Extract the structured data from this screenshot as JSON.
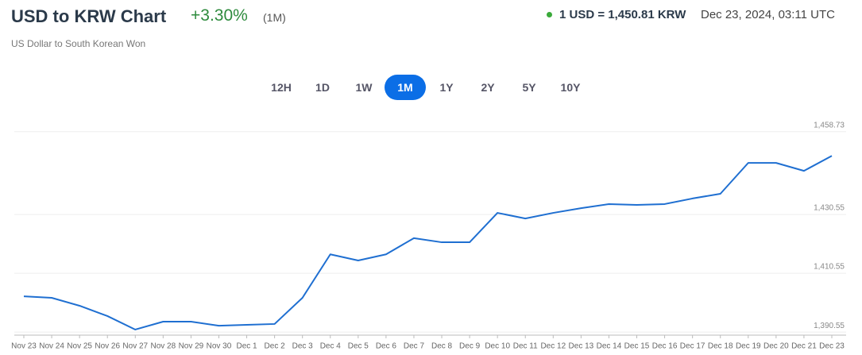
{
  "header": {
    "title": "USD to KRW Chart",
    "change": "+3.30%",
    "period": "(1M)",
    "subtitle": "US Dollar to South Korean Won",
    "rate": "1 USD = 1,450.81 KRW",
    "timestamp": "Dec 23, 2024, 03:11 UTC"
  },
  "ranges": {
    "options": [
      "12H",
      "1D",
      "1W",
      "1M",
      "1Y",
      "2Y",
      "5Y",
      "10Y"
    ],
    "active": "1M"
  },
  "chart_data": {
    "type": "line",
    "categories": [
      "Nov 23",
      "Nov 24",
      "Nov 25",
      "Nov 26",
      "Nov 27",
      "Nov 28",
      "Nov 29",
      "Nov 30",
      "Dec 1",
      "Dec 2",
      "Dec 3",
      "Dec 4",
      "Dec 5",
      "Dec 6",
      "Dec 7",
      "Dec 8",
      "Dec 9",
      "Dec 10",
      "Dec 11",
      "Dec 12",
      "Dec 13",
      "Dec 14",
      "Dec 15",
      "Dec 16",
      "Dec 17",
      "Dec 18",
      "Dec 19",
      "Dec 20",
      "Dec 21",
      "Dec 23"
    ],
    "values": [
      1402.7,
      1402.2,
      1399.5,
      1396,
      1391.4,
      1394.1,
      1394.1,
      1392.7,
      1393,
      1393.3,
      1402.2,
      1417,
      1414.9,
      1417,
      1422.5,
      1421.1,
      1421.1,
      1431.1,
      1429.2,
      1431.1,
      1432.7,
      1434.1,
      1433.8,
      1434.1,
      1436,
      1437.6,
      1448.1,
      1448.1,
      1445.4,
      1450.5
    ],
    "color": "#1f6fd1",
    "ylim": [
      1389.5,
      1463
    ],
    "yticks": [
      {
        "value": 1390.55,
        "label": "1,390.55"
      },
      {
        "value": 1410.55,
        "label": "1,410.55"
      },
      {
        "value": 1430.55,
        "label": "1,430.55"
      },
      {
        "value": 1458.73,
        "label": "1,458.73"
      }
    ],
    "grid": true
  }
}
